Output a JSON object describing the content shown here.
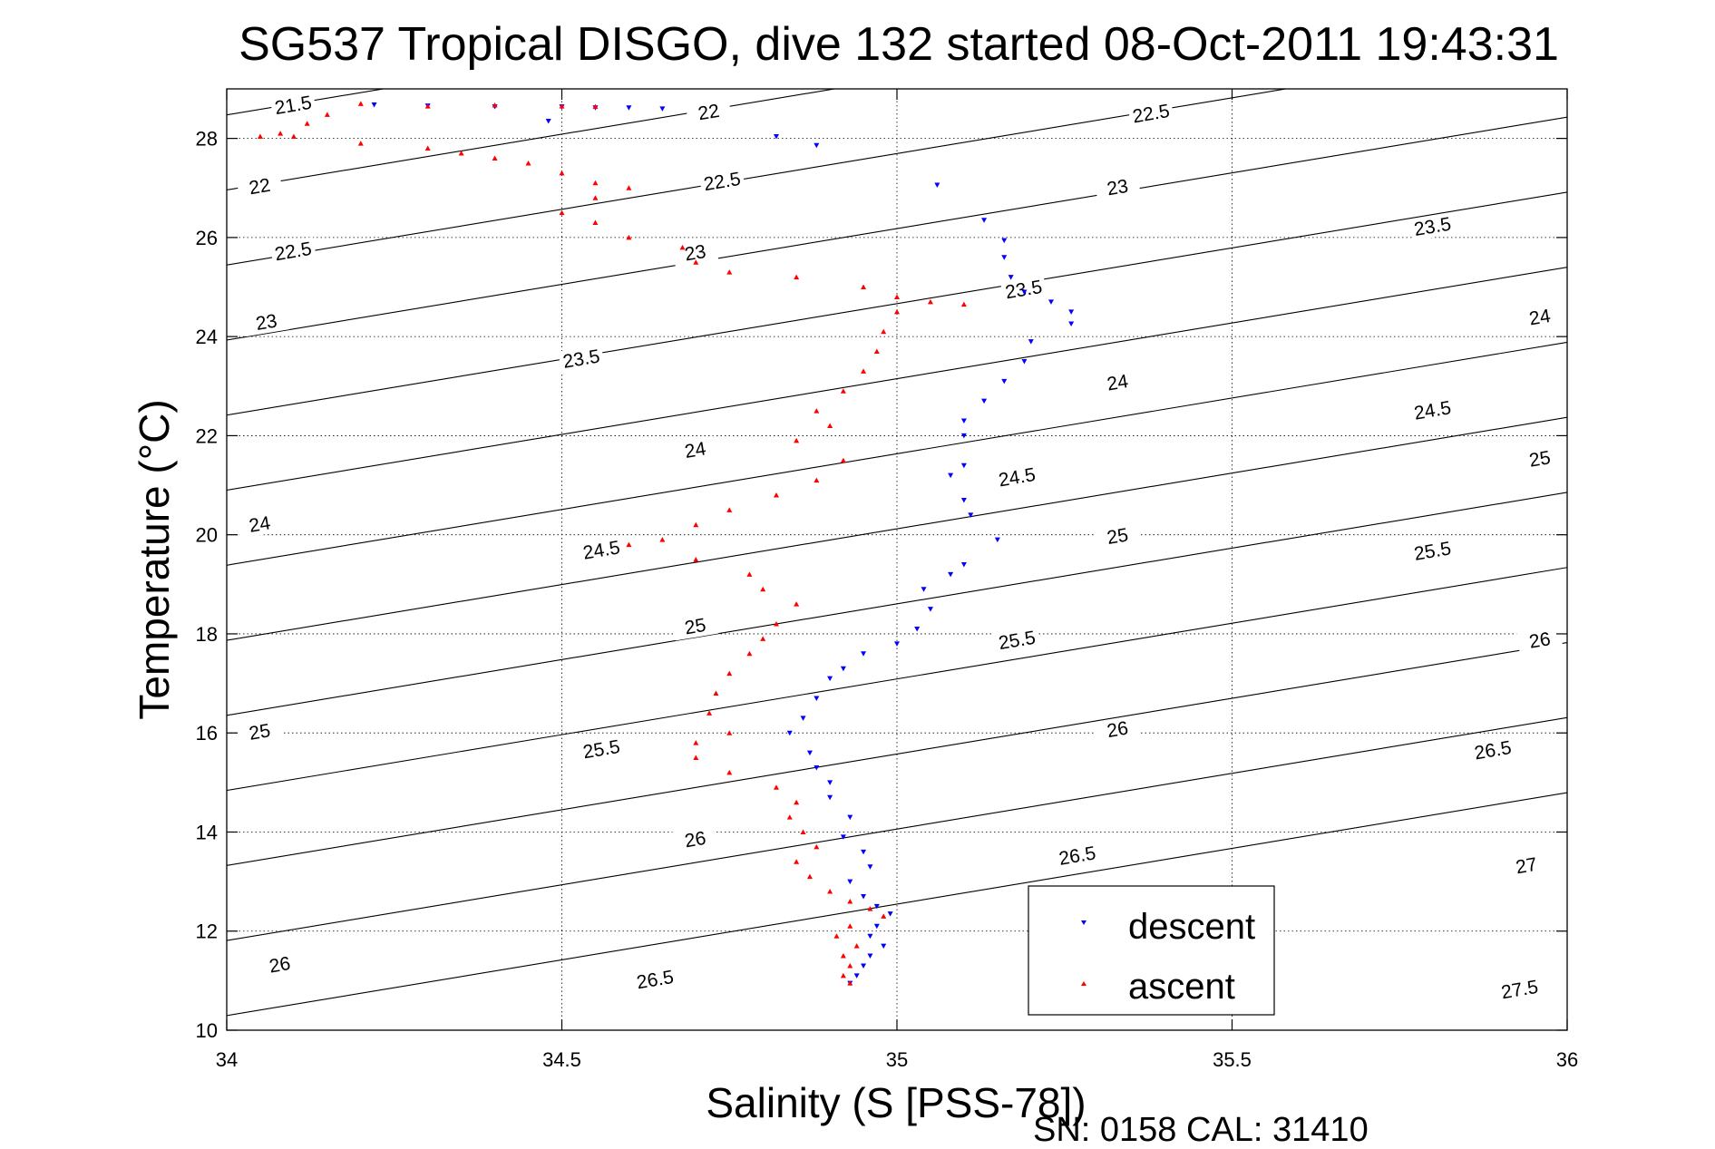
{
  "chart_data": {
    "type": "scatter",
    "title": "SG537 Tropical DISGO, dive 132 started 08-Oct-2011 19:43:31",
    "xlabel": "Salinity (S [PSS-78])",
    "ylabel": "Temperature (°C)",
    "footer": "SN: 0158  CAL: 31410",
    "xlim": [
      34,
      36
    ],
    "ylim": [
      10,
      29
    ],
    "xticks": [
      34,
      34.5,
      35,
      35.5,
      36
    ],
    "xtick_labels": [
      "34",
      "34.5",
      "35",
      "35.5",
      "36"
    ],
    "yticks": [
      10,
      12,
      14,
      16,
      18,
      20,
      22,
      24,
      26,
      28
    ],
    "ytick_labels": [
      "10",
      "12",
      "14",
      "16",
      "18",
      "20",
      "22",
      "24",
      "26",
      "28"
    ],
    "grid": "dotted",
    "legend_position": "bottom-right",
    "density_contours": {
      "levels": [
        21.5,
        22,
        22.5,
        23,
        23.5,
        24,
        24.5,
        25,
        25.5,
        26,
        26.5,
        27,
        27.5
      ],
      "labels": [
        {
          "level": 21.5,
          "x": 34.1,
          "y": 28.6
        },
        {
          "level": 22,
          "x": 34.05,
          "y": 26.96
        },
        {
          "level": 22,
          "x": 34.72,
          "y": 28.46
        },
        {
          "level": 22.5,
          "x": 34.1,
          "y": 25.65
        },
        {
          "level": 22.5,
          "x": 34.74,
          "y": 27.06
        },
        {
          "level": 22.5,
          "x": 35.38,
          "y": 28.43
        },
        {
          "level": 23,
          "x": 34.06,
          "y": 24.22
        },
        {
          "level": 23,
          "x": 34.7,
          "y": 25.62
        },
        {
          "level": 23,
          "x": 35.33,
          "y": 26.94
        },
        {
          "level": 23.5,
          "x": 34.53,
          "y": 23.48
        },
        {
          "level": 23.5,
          "x": 35.19,
          "y": 24.88
        },
        {
          "level": 23.5,
          "x": 35.8,
          "y": 26.15
        },
        {
          "level": 24,
          "x": 34.05,
          "y": 20.14
        },
        {
          "level": 24,
          "x": 34.7,
          "y": 21.64
        },
        {
          "level": 24,
          "x": 35.33,
          "y": 23.0
        },
        {
          "level": 24,
          "x": 35.96,
          "y": 24.32
        },
        {
          "level": 24.5,
          "x": 34.56,
          "y": 19.62
        },
        {
          "level": 24.5,
          "x": 35.18,
          "y": 21.09
        },
        {
          "level": 24.5,
          "x": 35.8,
          "y": 22.44
        },
        {
          "level": 25,
          "x": 34.05,
          "y": 15.95
        },
        {
          "level": 25,
          "x": 34.7,
          "y": 18.08
        },
        {
          "level": 25,
          "x": 35.33,
          "y": 19.9
        },
        {
          "level": 25,
          "x": 35.96,
          "y": 21.46
        },
        {
          "level": 25.5,
          "x": 34.56,
          "y": 15.6
        },
        {
          "level": 25.5,
          "x": 35.18,
          "y": 17.8
        },
        {
          "level": 25.5,
          "x": 35.8,
          "y": 19.6
        },
        {
          "level": 26,
          "x": 34.08,
          "y": 11.25
        },
        {
          "level": 26,
          "x": 34.7,
          "y": 13.78
        },
        {
          "level": 26,
          "x": 35.33,
          "y": 16.0
        },
        {
          "level": 26,
          "x": 35.96,
          "y": 17.8
        },
        {
          "level": 26.5,
          "x": 34.64,
          "y": 10.95
        },
        {
          "level": 26.5,
          "x": 35.27,
          "y": 13.45
        },
        {
          "level": 26.5,
          "x": 35.89,
          "y": 15.58
        },
        {
          "level": 27,
          "x": 35.94,
          "y": 13.25
        },
        {
          "level": 27.5,
          "x": 35.93,
          "y": 10.75
        }
      ]
    },
    "series": [
      {
        "name": "descent",
        "color": "#0000ff",
        "marker": "triangle-down",
        "points": [
          [
            34.22,
            28.68
          ],
          [
            34.3,
            28.66
          ],
          [
            34.4,
            28.64
          ],
          [
            34.5,
            28.64
          ],
          [
            34.55,
            28.62
          ],
          [
            34.6,
            28.62
          ],
          [
            34.65,
            28.6
          ],
          [
            34.48,
            28.35
          ],
          [
            34.82,
            28.04
          ],
          [
            34.88,
            27.86
          ],
          [
            35.06,
            27.06
          ],
          [
            35.13,
            26.35
          ],
          [
            35.16,
            25.94
          ],
          [
            35.16,
            25.6
          ],
          [
            35.17,
            25.2
          ],
          [
            35.19,
            24.9
          ],
          [
            35.23,
            24.7
          ],
          [
            35.26,
            24.5
          ],
          [
            35.26,
            24.26
          ],
          [
            35.2,
            23.9
          ],
          [
            35.19,
            23.5
          ],
          [
            35.16,
            23.1
          ],
          [
            35.13,
            22.7
          ],
          [
            35.1,
            22.3
          ],
          [
            35.1,
            22.0
          ],
          [
            35.1,
            21.4
          ],
          [
            35.08,
            21.2
          ],
          [
            35.1,
            20.7
          ],
          [
            35.11,
            20.4
          ],
          [
            35.15,
            19.9
          ],
          [
            35.1,
            19.4
          ],
          [
            35.08,
            19.2
          ],
          [
            35.04,
            18.9
          ],
          [
            35.05,
            18.5
          ],
          [
            35.03,
            18.1
          ],
          [
            35.0,
            17.8
          ],
          [
            34.95,
            17.6
          ],
          [
            34.92,
            17.3
          ],
          [
            34.9,
            17.1
          ],
          [
            34.88,
            16.7
          ],
          [
            34.86,
            16.3
          ],
          [
            34.84,
            16.0
          ],
          [
            34.87,
            15.6
          ],
          [
            34.88,
            15.3
          ],
          [
            34.9,
            15.0
          ],
          [
            34.9,
            14.7
          ],
          [
            34.93,
            14.3
          ],
          [
            34.92,
            13.9
          ],
          [
            34.95,
            13.6
          ],
          [
            34.96,
            13.3
          ],
          [
            34.93,
            13.0
          ],
          [
            34.95,
            12.7
          ],
          [
            34.97,
            12.5
          ],
          [
            34.99,
            12.35
          ],
          [
            34.97,
            12.1
          ],
          [
            34.96,
            11.9
          ],
          [
            34.98,
            11.7
          ],
          [
            34.96,
            11.5
          ],
          [
            34.95,
            11.3
          ],
          [
            34.94,
            11.1
          ],
          [
            34.93,
            10.95
          ]
        ]
      },
      {
        "name": "ascent",
        "color": "#ff0000",
        "marker": "triangle-up",
        "points": [
          [
            34.2,
            28.7
          ],
          [
            34.3,
            28.65
          ],
          [
            34.4,
            28.67
          ],
          [
            34.5,
            28.65
          ],
          [
            34.55,
            28.64
          ],
          [
            34.15,
            28.48
          ],
          [
            34.12,
            28.3
          ],
          [
            34.08,
            28.1
          ],
          [
            34.05,
            28.04
          ],
          [
            34.1,
            28.04
          ],
          [
            34.2,
            27.9
          ],
          [
            34.3,
            27.8
          ],
          [
            34.35,
            27.7
          ],
          [
            34.4,
            27.6
          ],
          [
            34.45,
            27.5
          ],
          [
            34.5,
            27.3
          ],
          [
            34.55,
            27.1
          ],
          [
            34.6,
            27.0
          ],
          [
            34.55,
            26.8
          ],
          [
            34.5,
            26.5
          ],
          [
            34.55,
            26.3
          ],
          [
            34.6,
            26.0
          ],
          [
            34.68,
            25.8
          ],
          [
            34.7,
            25.5
          ],
          [
            34.75,
            25.3
          ],
          [
            34.85,
            25.2
          ],
          [
            34.95,
            25.0
          ],
          [
            35.0,
            24.8
          ],
          [
            35.05,
            24.7
          ],
          [
            35.1,
            24.65
          ],
          [
            35.0,
            24.5
          ],
          [
            34.98,
            24.1
          ],
          [
            34.97,
            23.7
          ],
          [
            34.95,
            23.3
          ],
          [
            34.92,
            22.9
          ],
          [
            34.88,
            22.5
          ],
          [
            34.9,
            22.2
          ],
          [
            34.85,
            21.9
          ],
          [
            34.92,
            21.5
          ],
          [
            34.88,
            21.1
          ],
          [
            34.82,
            20.8
          ],
          [
            34.75,
            20.5
          ],
          [
            34.7,
            20.2
          ],
          [
            34.65,
            19.9
          ],
          [
            34.6,
            19.8
          ],
          [
            34.7,
            19.5
          ],
          [
            34.78,
            19.2
          ],
          [
            34.8,
            18.9
          ],
          [
            34.85,
            18.6
          ],
          [
            34.82,
            18.2
          ],
          [
            34.8,
            17.9
          ],
          [
            34.78,
            17.6
          ],
          [
            34.75,
            17.2
          ],
          [
            34.73,
            16.8
          ],
          [
            34.72,
            16.4
          ],
          [
            34.75,
            16.0
          ],
          [
            34.7,
            15.8
          ],
          [
            34.7,
            15.5
          ],
          [
            34.75,
            15.2
          ],
          [
            34.82,
            14.9
          ],
          [
            34.85,
            14.6
          ],
          [
            34.84,
            14.3
          ],
          [
            34.86,
            14.0
          ],
          [
            34.88,
            13.7
          ],
          [
            34.85,
            13.4
          ],
          [
            34.87,
            13.1
          ],
          [
            34.9,
            12.8
          ],
          [
            34.93,
            12.6
          ],
          [
            34.96,
            12.45
          ],
          [
            34.98,
            12.3
          ],
          [
            34.93,
            12.1
          ],
          [
            34.91,
            11.9
          ],
          [
            34.94,
            11.7
          ],
          [
            34.92,
            11.5
          ],
          [
            34.93,
            11.3
          ],
          [
            34.92,
            11.1
          ],
          [
            34.93,
            10.95
          ]
        ]
      }
    ]
  }
}
